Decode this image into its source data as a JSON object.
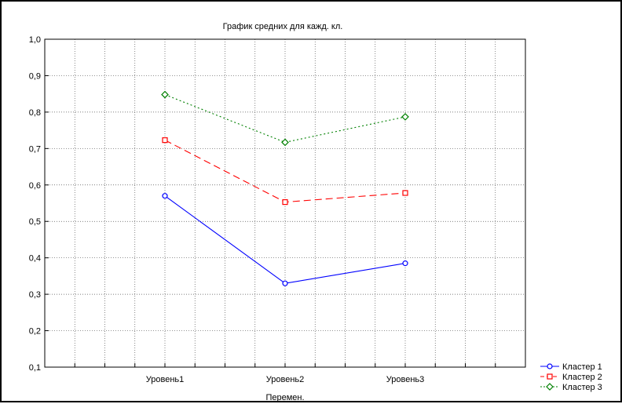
{
  "chart_data": {
    "type": "line",
    "title": "График средних для кажд. кл.",
    "xlabel": "Перемен.",
    "ylabel": "",
    "categories": [
      "Уровень1",
      "Уровень2",
      "Уровень3"
    ],
    "ylim": [
      0.1,
      1.0
    ],
    "yticks": [
      "0,1",
      "0,2",
      "0,3",
      "0,4",
      "0,5",
      "0,6",
      "0,7",
      "0,8",
      "0,9",
      "1,0"
    ],
    "grid": true,
    "legend_position": "bottom-right",
    "series": [
      {
        "name": "Кластер 1",
        "values": [
          0.57,
          0.33,
          0.385
        ],
        "color": "#0000ff",
        "marker": "circle",
        "dash": "solid"
      },
      {
        "name": "Кластер 2",
        "values": [
          0.723,
          0.553,
          0.578
        ],
        "color": "#ff0000",
        "marker": "square",
        "dash": "dashed"
      },
      {
        "name": "Кластер 3",
        "values": [
          0.848,
          0.717,
          0.787
        ],
        "color": "#008000",
        "marker": "diamond",
        "dash": "dotted"
      }
    ]
  }
}
